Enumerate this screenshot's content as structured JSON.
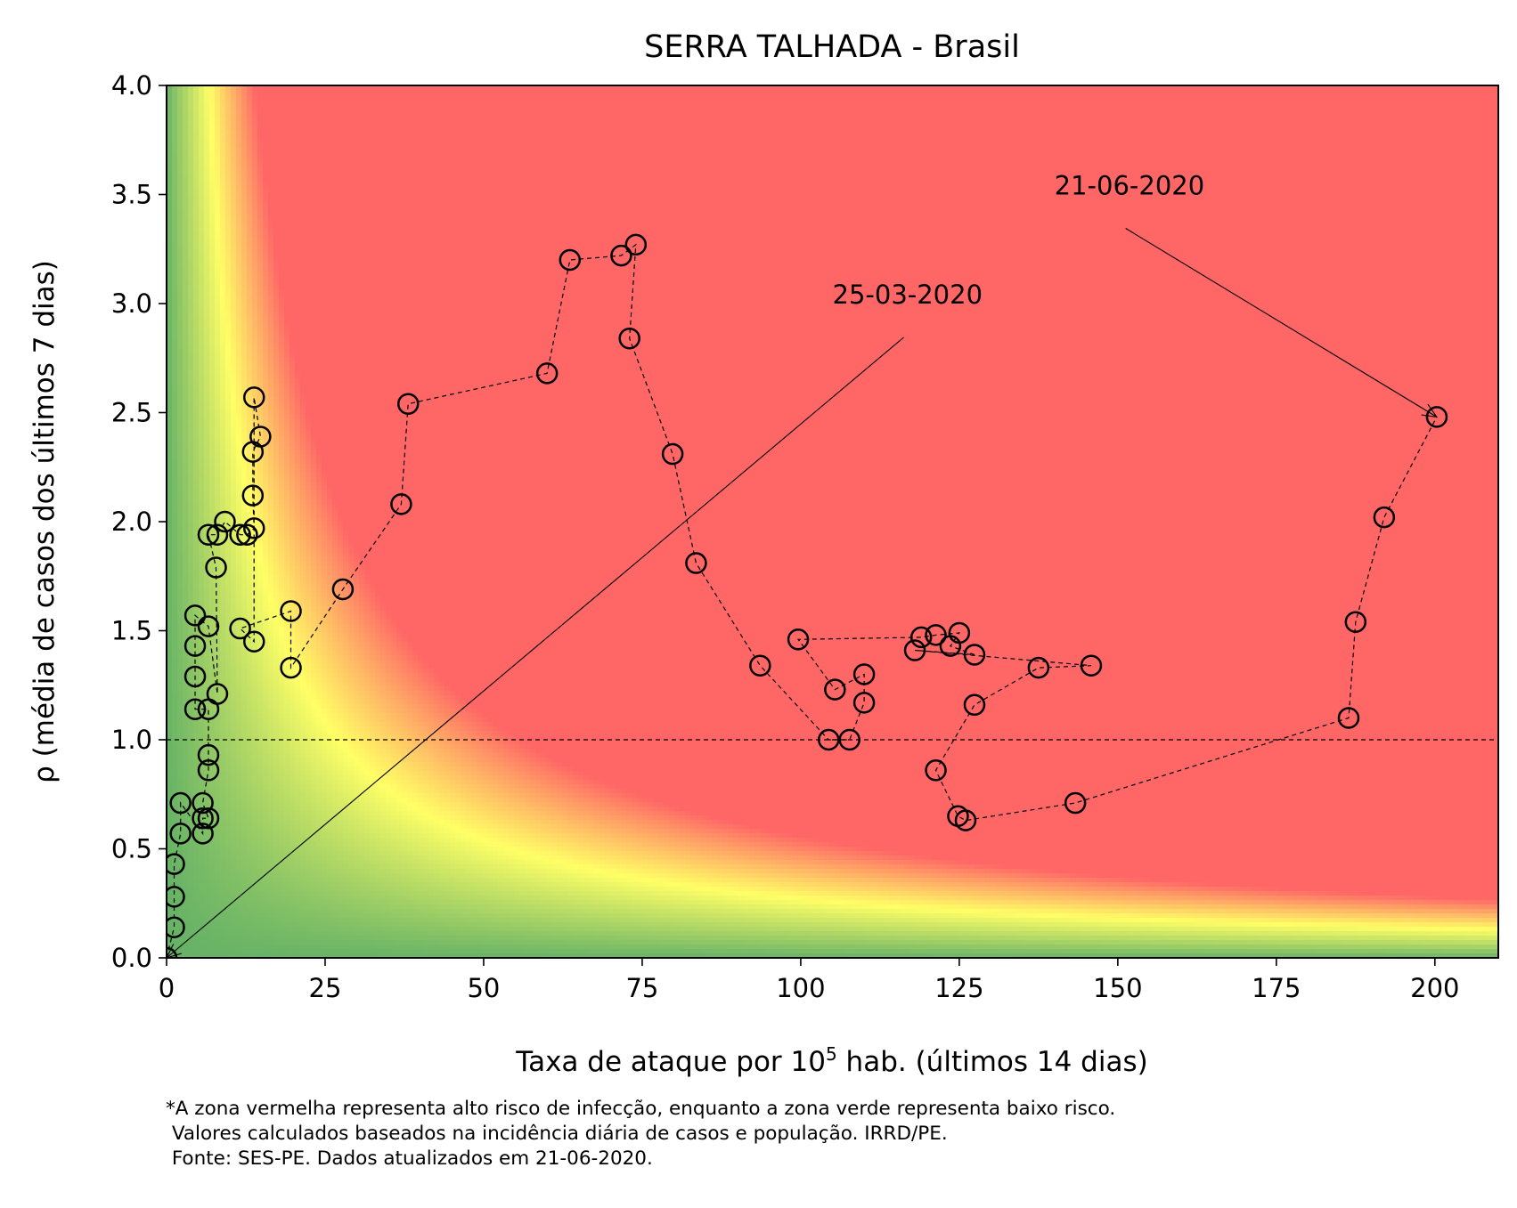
{
  "chart_data": {
    "type": "scatter",
    "title": "SERRA TALHADA - Brasil",
    "xlabel_parts": {
      "pre": "Taxa de ataque por 10",
      "sup": "5",
      "post": " hab. (últimos 14 dias)"
    },
    "ylabel": "ρ (média de casos dos últimos 7 dias)",
    "xlim": [
      0,
      210
    ],
    "ylim": [
      0,
      4
    ],
    "xticks": [
      0,
      25,
      50,
      75,
      100,
      125,
      150,
      175,
      200
    ],
    "yticks": [
      0.0,
      0.5,
      1.0,
      1.5,
      2.0,
      2.5,
      3.0,
      3.5,
      4.0
    ],
    "xtick_labels": [
      "0",
      "25",
      "50",
      "75",
      "100",
      "125",
      "150",
      "175",
      "200"
    ],
    "ytick_labels": [
      "0.0",
      "0.5",
      "1.0",
      "1.5",
      "2.0",
      "2.5",
      "3.0",
      "3.5",
      "4.0"
    ],
    "reference_line_y": 1.0,
    "background": "risk heatmap: green (low) → yellow → red (high), boundary along x·ρ ≈ 40",
    "colors": {
      "green": "#66b266",
      "yellow": "#ffff66",
      "red": "#ff6666",
      "marker": "#000000"
    },
    "points": [
      [
        0.0,
        0.0
      ],
      [
        1.2,
        0.14
      ],
      [
        1.2,
        0.28
      ],
      [
        1.2,
        0.43
      ],
      [
        2.2,
        0.57
      ],
      [
        2.2,
        0.71
      ],
      [
        5.7,
        0.57
      ],
      [
        5.7,
        0.64
      ],
      [
        6.6,
        0.64
      ],
      [
        5.7,
        0.71
      ],
      [
        6.6,
        0.86
      ],
      [
        6.6,
        0.93
      ],
      [
        6.6,
        1.14
      ],
      [
        4.5,
        1.14
      ],
      [
        4.5,
        1.29
      ],
      [
        4.5,
        1.43
      ],
      [
        4.5,
        1.57
      ],
      [
        6.6,
        1.52
      ],
      [
        8.0,
        1.21
      ],
      [
        7.8,
        1.79
      ],
      [
        6.6,
        1.94
      ],
      [
        8.0,
        1.94
      ],
      [
        9.2,
        2.0
      ],
      [
        11.6,
        1.94
      ],
      [
        12.7,
        1.94
      ],
      [
        13.8,
        1.97
      ],
      [
        13.6,
        2.12
      ],
      [
        13.6,
        2.32
      ],
      [
        14.8,
        2.39
      ],
      [
        13.8,
        2.57
      ],
      [
        13.8,
        1.45
      ],
      [
        11.6,
        1.51
      ],
      [
        19.6,
        1.59
      ],
      [
        19.6,
        1.33
      ],
      [
        27.8,
        1.69
      ],
      [
        37.0,
        2.08
      ],
      [
        38.1,
        2.54
      ],
      [
        60.0,
        2.68
      ],
      [
        63.6,
        3.2
      ],
      [
        71.7,
        3.22
      ],
      [
        74.0,
        3.27
      ],
      [
        73.0,
        2.84
      ],
      [
        79.8,
        2.31
      ],
      [
        83.5,
        1.81
      ],
      [
        93.6,
        1.34
      ],
      [
        104.4,
        1.0
      ],
      [
        107.7,
        1.0
      ],
      [
        110.0,
        1.17
      ],
      [
        110.0,
        1.3
      ],
      [
        105.4,
        1.23
      ],
      [
        99.6,
        1.46
      ],
      [
        119.0,
        1.47
      ],
      [
        121.3,
        1.48
      ],
      [
        125.0,
        1.49
      ],
      [
        123.6,
        1.43
      ],
      [
        127.4,
        1.39
      ],
      [
        118.0,
        1.41
      ],
      [
        145.8,
        1.34
      ],
      [
        137.5,
        1.33
      ],
      [
        127.4,
        1.16
      ],
      [
        121.3,
        0.86
      ],
      [
        124.8,
        0.65
      ],
      [
        126.0,
        0.63
      ],
      [
        143.3,
        0.71
      ],
      [
        186.4,
        1.1
      ],
      [
        187.5,
        1.54
      ],
      [
        192.0,
        2.02
      ],
      [
        200.3,
        2.48
      ]
    ],
    "annotations": [
      {
        "text": "25-03-2020",
        "target": [
          0.0,
          0.0
        ],
        "text_pos": [
          105.0,
          3.0
        ]
      },
      {
        "text": "21-06-2020",
        "target": [
          200.3,
          2.48
        ],
        "text_pos": [
          140.0,
          3.5
        ]
      }
    ]
  },
  "footnote": {
    "line1": "*A zona vermelha representa alto risco de infecção, enquanto a zona verde representa baixo risco.",
    "line2": " Valores calculados baseados na incidência diária de casos e população. IRRD/PE.",
    "line3": " Fonte: SES-PE. Dados atualizados em 21-06-2020."
  }
}
